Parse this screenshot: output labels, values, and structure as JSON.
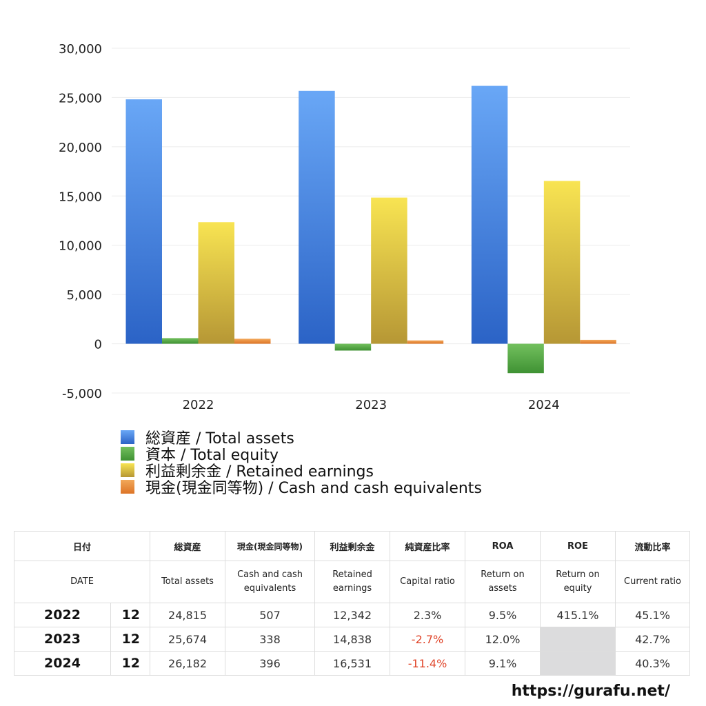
{
  "chart_data": {
    "type": "bar",
    "categories": [
      "2022",
      "2023",
      "2024"
    ],
    "series": [
      {
        "name": "総資産 / Total assets",
        "color_top": "#69a7f6",
        "color_bottom": "#2b63c6",
        "values": [
          24815,
          25674,
          26182
        ]
      },
      {
        "name": "資本 / Total equity",
        "color_top": "#73c05e",
        "color_bottom": "#3f9233",
        "values": [
          571,
          -693,
          -2985
        ]
      },
      {
        "name": "利益剰余金 / Retained earnings",
        "color_top": "#f8e452",
        "color_bottom": "#b69735",
        "values": [
          12342,
          14838,
          16531
        ]
      },
      {
        "name": "現金(現金同等物) / Cash and cash equivalents",
        "color_top": "#f2a85a",
        "color_bottom": "#dd7426",
        "values": [
          507,
          338,
          396
        ]
      }
    ],
    "ylim": [
      -5000,
      30000
    ],
    "yticks": [
      30000,
      25000,
      20000,
      15000,
      10000,
      5000,
      0,
      -5000
    ],
    "ytick_labels": [
      "30,000",
      "25,000",
      "20,000",
      "15,000",
      "10,000",
      "5,000",
      "0",
      "-5,000"
    ],
    "grid": true,
    "legend_position": "bottom-left"
  },
  "table": {
    "header_jp": [
      "日付",
      "総資産",
      "現金(現金同等物)",
      "利益剰余金",
      "純資産比率",
      "ROA",
      "ROE",
      "流動比率"
    ],
    "header_en": [
      "DATE",
      "Total assets",
      "Cash and cash\nequivalents",
      "Retained\nearnings",
      "Capital ratio",
      "Return on\nassets",
      "Return on\nequity",
      "Current ratio"
    ],
    "rows": [
      {
        "year": "2022",
        "month": "12",
        "total_assets": "24,815",
        "cash": "507",
        "retained": "12,342",
        "capital_ratio": "2.3%",
        "roa": "9.5%",
        "roe": "415.1%",
        "current_ratio": "45.1%"
      },
      {
        "year": "2023",
        "month": "12",
        "total_assets": "25,674",
        "cash": "338",
        "retained": "14,838",
        "capital_ratio": "-2.7%",
        "roa": "12.0%",
        "roe": "",
        "current_ratio": "42.7%"
      },
      {
        "year": "2024",
        "month": "12",
        "total_assets": "26,182",
        "cash": "396",
        "retained": "16,531",
        "capital_ratio": "-11.4%",
        "roa": "9.1%",
        "roe": "",
        "current_ratio": "40.3%"
      }
    ],
    "negative_color": "#e0452a",
    "blank_color": "#dcdcdd"
  },
  "footer": {
    "url": "https://gurafu.net/"
  }
}
